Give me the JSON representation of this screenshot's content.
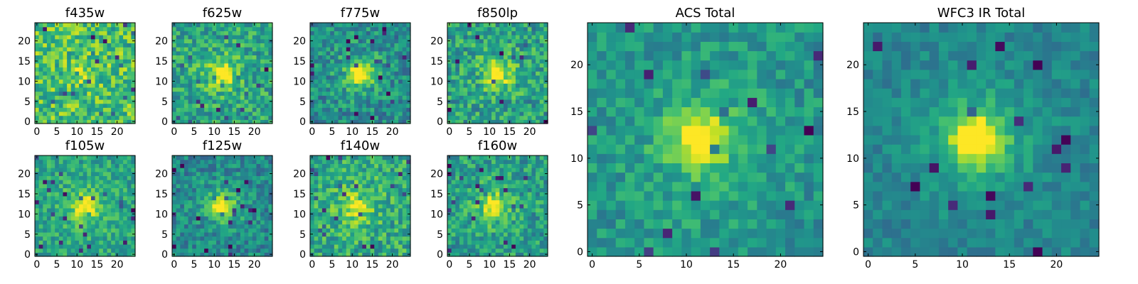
{
  "chart_data": [
    {
      "type": "heatmap",
      "title": "f435w",
      "xlim": [
        0,
        24
      ],
      "ylim": [
        0,
        24
      ],
      "x_ticks": [
        0,
        5,
        10,
        15,
        20
      ],
      "y_ticks": [
        0,
        5,
        10,
        15,
        20
      ],
      "colormap": "viridis",
      "grid": false,
      "source_seed": 11,
      "peak_center": [
        12,
        12
      ],
      "peak_strength": 0.12,
      "noise": 0.45,
      "base": 0.7
    },
    {
      "type": "heatmap",
      "title": "f625w",
      "xlim": [
        0,
        24
      ],
      "ylim": [
        0,
        24
      ],
      "x_ticks": [
        0,
        5,
        10,
        15,
        20
      ],
      "y_ticks": [
        0,
        5,
        10,
        15,
        20
      ],
      "colormap": "viridis",
      "grid": false,
      "source_seed": 23,
      "peak_center": [
        12,
        12
      ],
      "peak_strength": 0.4,
      "noise": 0.4,
      "base": 0.58
    },
    {
      "type": "heatmap",
      "title": "f775w",
      "xlim": [
        0,
        24
      ],
      "ylim": [
        0,
        24
      ],
      "x_ticks": [
        0,
        5,
        10,
        15,
        20
      ],
      "y_ticks": [
        0,
        5,
        10,
        15,
        20
      ],
      "colormap": "viridis",
      "grid": false,
      "source_seed": 37,
      "peak_center": [
        12,
        12
      ],
      "peak_strength": 0.5,
      "noise": 0.38,
      "base": 0.48
    },
    {
      "type": "heatmap",
      "title": "f850lp",
      "xlim": [
        0,
        24
      ],
      "ylim": [
        0,
        24
      ],
      "x_ticks": [
        0,
        5,
        10,
        15,
        20
      ],
      "y_ticks": [
        0,
        5,
        10,
        15,
        20
      ],
      "colormap": "viridis",
      "grid": false,
      "source_seed": 41,
      "peak_center": [
        12,
        12
      ],
      "peak_strength": 0.4,
      "noise": 0.42,
      "base": 0.56
    },
    {
      "type": "heatmap",
      "title": "f105w",
      "xlim": [
        0,
        24
      ],
      "ylim": [
        0,
        24
      ],
      "x_ticks": [
        0,
        5,
        10,
        15,
        20
      ],
      "y_ticks": [
        0,
        5,
        10,
        15,
        20
      ],
      "colormap": "viridis",
      "grid": false,
      "source_seed": 53,
      "peak_center": [
        12,
        12
      ],
      "peak_strength": 0.4,
      "noise": 0.32,
      "base": 0.58
    },
    {
      "type": "heatmap",
      "title": "f125w",
      "xlim": [
        0,
        24
      ],
      "ylim": [
        0,
        24
      ],
      "x_ticks": [
        0,
        5,
        10,
        15,
        20
      ],
      "y_ticks": [
        0,
        5,
        10,
        15,
        20
      ],
      "colormap": "viridis",
      "grid": false,
      "source_seed": 67,
      "peak_center": [
        12,
        12
      ],
      "peak_strength": 0.5,
      "noise": 0.34,
      "base": 0.46
    },
    {
      "type": "heatmap",
      "title": "f140w",
      "xlim": [
        0,
        24
      ],
      "ylim": [
        0,
        24
      ],
      "x_ticks": [
        0,
        5,
        10,
        15,
        20
      ],
      "y_ticks": [
        0,
        5,
        10,
        15,
        20
      ],
      "colormap": "viridis",
      "grid": false,
      "source_seed": 79,
      "peak_center": [
        11,
        12
      ],
      "peak_strength": 0.35,
      "noise": 0.4,
      "base": 0.6
    },
    {
      "type": "heatmap",
      "title": "f160w",
      "xlim": [
        0,
        24
      ],
      "ylim": [
        0,
        24
      ],
      "x_ticks": [
        0,
        5,
        10,
        15,
        20
      ],
      "y_ticks": [
        0,
        5,
        10,
        15,
        20
      ],
      "colormap": "viridis",
      "grid": false,
      "source_seed": 83,
      "peak_center": [
        11,
        12
      ],
      "peak_strength": 0.4,
      "noise": 0.38,
      "base": 0.55
    },
    {
      "type": "heatmap",
      "title": "ACS Total",
      "xlim": [
        0,
        24
      ],
      "ylim": [
        0,
        24
      ],
      "x_ticks": [
        0,
        5,
        10,
        15,
        20
      ],
      "y_ticks": [
        0,
        5,
        10,
        15,
        20
      ],
      "colormap": "viridis",
      "grid": false,
      "source_seed": 97,
      "peak_center": [
        11.5,
        12
      ],
      "peak_strength": 0.5,
      "noise": 0.28,
      "base": 0.52
    },
    {
      "type": "heatmap",
      "title": "WFC3 IR Total",
      "xlim": [
        0,
        24
      ],
      "ylim": [
        0,
        24
      ],
      "x_ticks": [
        0,
        5,
        10,
        15,
        20
      ],
      "y_ticks": [
        0,
        5,
        10,
        15,
        20
      ],
      "colormap": "viridis",
      "grid": false,
      "source_seed": 101,
      "peak_center": [
        11.5,
        12
      ],
      "peak_strength": 0.55,
      "noise": 0.2,
      "base": 0.45
    }
  ],
  "colors": {
    "axis": "#000000",
    "background": "#ffffff"
  }
}
